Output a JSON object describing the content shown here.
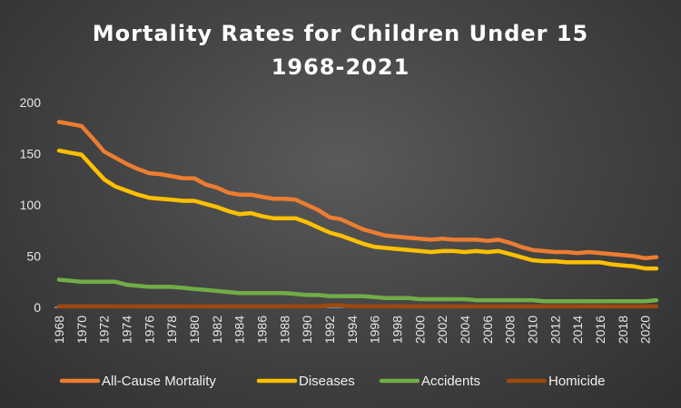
{
  "chart_data": {
    "type": "line",
    "title": "Mortality Rates for Children Under 15",
    "subtitle": "1968-2021",
    "xlabel": "",
    "ylabel": "",
    "x": [
      1968,
      1969,
      1970,
      1971,
      1972,
      1973,
      1974,
      1975,
      1976,
      1977,
      1978,
      1979,
      1980,
      1981,
      1982,
      1983,
      1984,
      1985,
      1986,
      1987,
      1988,
      1989,
      1990,
      1991,
      1992,
      1993,
      1994,
      1995,
      1996,
      1997,
      1998,
      1999,
      2000,
      2001,
      2002,
      2003,
      2004,
      2005,
      2006,
      2007,
      2008,
      2009,
      2010,
      2011,
      2012,
      2013,
      2014,
      2015,
      2016,
      2017,
      2018,
      2019,
      2020,
      2021
    ],
    "x_tick_labels": [
      "1968",
      "1970",
      "1972",
      "1974",
      "1976",
      "1978",
      "1980",
      "1982",
      "1984",
      "1986",
      "1988",
      "1990",
      "1992",
      "1994",
      "1996",
      "1998",
      "2000",
      "2002",
      "2004",
      "2006",
      "2008",
      "2010",
      "2012",
      "2014",
      "2016",
      "2018",
      "2020"
    ],
    "y_ticks": [
      "0",
      "50",
      "100",
      "150",
      "200"
    ],
    "ylim": [
      0,
      200
    ],
    "grid": false,
    "legend_position": "bottom",
    "series": [
      {
        "name": "All-Cause Mortality",
        "color": "#ed7d31",
        "values": [
          181,
          179,
          177,
          165,
          152,
          146,
          140,
          135,
          131,
          130,
          128,
          126,
          126,
          120,
          117,
          112,
          110,
          110,
          108,
          106,
          106,
          105,
          100,
          95,
          88,
          86,
          81,
          76,
          73,
          70,
          69,
          68,
          67,
          66,
          67,
          66,
          66,
          66,
          65,
          66,
          63,
          59,
          56,
          55,
          54,
          54,
          53,
          54,
          53,
          52,
          51,
          50,
          48,
          49
        ]
      },
      {
        "name": "Diseases",
        "color": "#ffc000",
        "values": [
          153,
          151,
          149,
          137,
          125,
          118,
          114,
          110,
          107,
          106,
          105,
          104,
          104,
          101,
          98,
          94,
          91,
          92,
          89,
          87,
          87,
          87,
          83,
          78,
          73,
          70,
          66,
          62,
          59,
          58,
          57,
          56,
          55,
          54,
          55,
          55,
          54,
          55,
          54,
          55,
          52,
          49,
          46,
          45,
          45,
          44,
          44,
          44,
          44,
          42,
          41,
          40,
          38,
          38
        ]
      },
      {
        "name": "Accidents",
        "color": "#70ad47",
        "values": [
          27,
          26,
          25,
          25,
          25,
          25,
          22,
          21,
          20,
          20,
          20,
          19,
          18,
          17,
          16,
          15,
          14,
          14,
          14,
          14,
          14,
          13,
          12,
          12,
          11,
          11,
          11,
          11,
          10,
          9,
          9,
          9,
          8,
          8,
          8,
          8,
          8,
          7,
          7,
          7,
          7,
          7,
          7,
          6,
          6,
          6,
          6,
          6,
          6,
          6,
          6,
          6,
          6,
          7
        ]
      },
      {
        "name": "Homicide",
        "color": "#9e480e",
        "values": [
          1,
          1,
          1,
          1,
          1,
          1,
          1,
          1,
          1,
          1,
          1,
          1,
          1,
          1,
          1,
          1,
          1,
          1,
          1,
          1,
          1,
          1,
          1,
          1,
          2,
          2,
          1,
          1,
          1,
          1,
          1,
          1,
          1,
          1,
          1,
          1,
          1,
          1,
          1,
          1,
          1,
          1,
          1,
          1,
          1,
          1,
          1,
          1,
          1,
          1,
          1,
          1,
          1,
          1
        ]
      }
    ]
  }
}
